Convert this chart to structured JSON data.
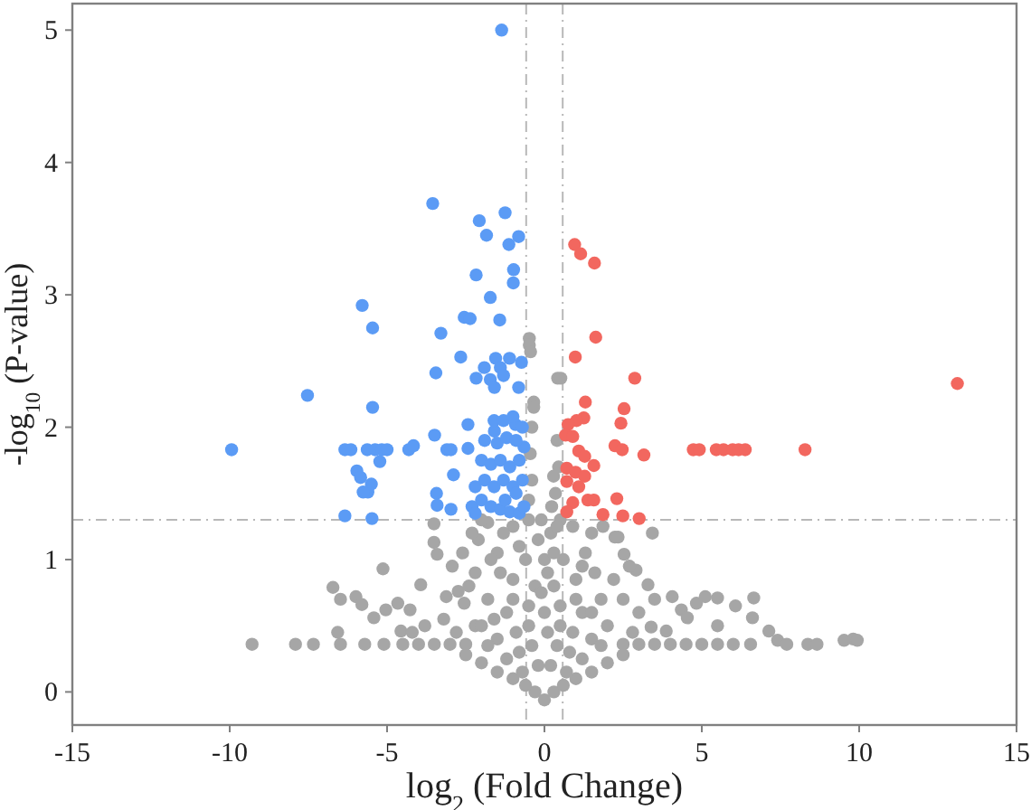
{
  "chart_data": {
    "type": "scatter",
    "xlabel": "log$_{2}$ (Fold Change)",
    "ylabel": "-log$_{10}$ (P-value)",
    "xlim": [
      -15,
      15
    ],
    "ylim": [
      -0.25,
      5.2
    ],
    "xticks": [
      -15,
      -10,
      -5,
      0,
      5,
      10,
      15
    ],
    "yticks": [
      0,
      1,
      2,
      3,
      4,
      5
    ],
    "marker": "circle",
    "ref_lines": [
      {
        "axis": "x",
        "value": -0.58,
        "color": "#b8b8b8",
        "line_style": "dashed"
      },
      {
        "axis": "x",
        "value": 0.58,
        "color": "#b8b8b8",
        "line_style": "dashed"
      },
      {
        "axis": "y",
        "value": 1.3,
        "color": "#b8b8b8",
        "line_style": "dashed"
      }
    ],
    "series": [
      {
        "color": "#a6a6a6",
        "x": [
          -9.29,
          -7.91,
          -7.34,
          -6.48,
          -5.71,
          -5.1,
          -4.5,
          -4.0,
          -3.5,
          -3.0,
          -2.5,
          -6.72,
          -5.13,
          -6.48,
          -5.99,
          -5.8,
          -5.42,
          -5.04,
          -4.66,
          -4.27,
          -4.56,
          -6.57,
          -3.93,
          -3.51,
          -3.41,
          -2.93,
          -3.12,
          -2.74,
          -2.55,
          -3.51,
          -3.8,
          -3.2,
          -2.2,
          6.55,
          6.0,
          5.5,
          5.0,
          4.5,
          4.0,
          3.5,
          3.0,
          2.5,
          7.13,
          7.41,
          7.7,
          8.37,
          8.66,
          9.52,
          9.81,
          9.94,
          6.65,
          6.61,
          6.07,
          5.5,
          5.11,
          4.83,
          4.35,
          4.06,
          4.54,
          3.87,
          3.39,
          3.29,
          2.91,
          2.53,
          2.24,
          1.86,
          3.43,
          2.34,
          3.0,
          2.5,
          -0.48,
          -0.48,
          -0.44,
          0.42,
          0.52,
          -0.34,
          -0.34,
          0.29,
          0.23,
          -0.4,
          -0.45,
          -0.4,
          0.4,
          0.45,
          -0.5,
          0.35,
          0,
          -0.3,
          0.3,
          -0.6,
          0.6,
          -1.0,
          1.0,
          -1.5,
          1.5,
          -2.0,
          2.0,
          -2.5,
          2.5,
          -0.2,
          0.2,
          -0.8,
          0.8,
          -1.5,
          1.5,
          -2.0,
          2.0,
          -0.5,
          0.5,
          -1.2,
          1.2,
          -1.8,
          1.8,
          -0.3,
          0.3,
          -1.0,
          1.0,
          -2.2,
          1.6,
          -0.6,
          0.6,
          -1.5,
          1.3,
          -2.1,
          -0.2,
          0.2,
          -1.0,
          0.9,
          -1.8,
          -0.5,
          0.5,
          -2.3,
          0,
          0,
          -0.9,
          0.9,
          -1.8,
          -1.2,
          -0.7,
          0.7,
          1.2,
          1.8,
          -2.8,
          2.8,
          -1.6,
          -1.0,
          -0.5,
          0.5,
          1.0,
          1.5,
          -2.4,
          -1.4,
          -0.8,
          0.3,
          1.2,
          2.2,
          -1.3,
          -0.1,
          0.4,
          1.5,
          -2.6,
          -0.4,
          0.4,
          0.1,
          -0.1,
          0.1,
          -1.7,
          2.7,
          3.5,
          -4.2,
          5.5,
          -2.0
        ],
        "values": [
          0.36,
          0.36,
          0.36,
          0.36,
          0.36,
          0.36,
          0.36,
          0.36,
          0.36,
          0.36,
          0.36,
          0.79,
          0.93,
          0.7,
          0.72,
          0.66,
          0.56,
          0.62,
          0.67,
          0.62,
          0.46,
          0.45,
          0.81,
          1.13,
          1.04,
          0.95,
          0.72,
          0.76,
          0.67,
          1.27,
          0.5,
          0.55,
          0.5,
          0.36,
          0.36,
          0.36,
          0.36,
          0.36,
          0.36,
          0.36,
          0.36,
          0.36,
          0.46,
          0.39,
          0.36,
          0.36,
          0.36,
          0.39,
          0.4,
          0.39,
          0.71,
          0.56,
          0.65,
          0.71,
          0.72,
          0.67,
          0.62,
          0.72,
          0.56,
          0.46,
          0.49,
          0.81,
          0.92,
          1.04,
          1.17,
          1.25,
          1.2,
          1.17,
          0.6,
          0.7,
          2.67,
          2.62,
          2.57,
          2.37,
          2.37,
          2.19,
          2.15,
          1.63,
          1.4,
          2.0,
          1.8,
          1.6,
          1.9,
          1.7,
          1.45,
          1.5,
          -0.06,
          0,
          0,
          0.05,
          0.05,
          0.1,
          0.1,
          0.15,
          0.15,
          0.22,
          0.22,
          0.28,
          0.28,
          0.2,
          0.2,
          0.3,
          0.3,
          0.4,
          0.4,
          0.5,
          0.5,
          0.5,
          0.5,
          0.6,
          0.6,
          0.7,
          0.7,
          0.8,
          0.8,
          0.85,
          0.85,
          0.9,
          0.9,
          1.0,
          1.0,
          1.05,
          1.05,
          1.15,
          1.15,
          1.2,
          1.25,
          1.25,
          1.28,
          1.3,
          1.3,
          1.2,
          0.6,
          1.0,
          0.45,
          0.45,
          0.35,
          0.25,
          0.15,
          0.15,
          0.25,
          0.35,
          0.45,
          0.45,
          0.55,
          0.7,
          0.65,
          0.65,
          0.7,
          0.6,
          0.8,
          0.9,
          1.1,
          1.05,
          0.95,
          0.85,
          1.2,
          1.3,
          1.25,
          1.2,
          1.05,
          0.35,
          0.35,
          0.45,
          0.75,
          0.9,
          1.0,
          0.95,
          0.7,
          0.45,
          0.5,
          1.3
        ]
      },
      {
        "color": "#5b9bf5",
        "x": [
          -1.36,
          -3.55,
          -1.25,
          -2.07,
          -1.84,
          -0.82,
          -1.13,
          -2.17,
          -0.98,
          -0.99,
          -1.72,
          -5.79,
          -2.55,
          -2.36,
          -1.42,
          -5.46,
          -3.29,
          -2.66,
          -1.55,
          -1.11,
          -0.73,
          -3.45,
          -1.91,
          -1.4,
          -2.17,
          -1.72,
          -1.3,
          -1.59,
          -0.82,
          -7.53,
          -5.46,
          -2.43,
          -3.49,
          -1.59,
          -0.92,
          -9.94,
          -6.34,
          -6.15,
          -5.63,
          -5.38,
          -5.17,
          -5.0,
          -4.31,
          -4.16,
          -3.1,
          -2.97,
          -2.43,
          -5.96,
          -5.84,
          -5.23,
          -5.5,
          -5.61,
          -5.76,
          -2.89,
          -3.43,
          -3.41,
          -2.97,
          -6.34,
          -5.48,
          -2.3,
          -2.0,
          -1.7,
          -1.4,
          -1.1,
          -0.8,
          -0.65,
          -2.2,
          -1.9,
          -1.6,
          -1.3,
          -1.0,
          -0.7,
          -2.0,
          -1.7,
          -1.4,
          -1.1,
          -0.8,
          -0.65,
          -1.9,
          -1.5,
          -1.2,
          -0.9,
          -1.6,
          -1.3,
          -1.0,
          -0.7,
          -2.2,
          -1.25,
          -0.9
        ],
        "values": [
          5.0,
          3.69,
          3.62,
          3.56,
          3.45,
          3.44,
          3.38,
          3.15,
          3.19,
          3.09,
          2.98,
          2.92,
          2.83,
          2.82,
          2.81,
          2.75,
          2.71,
          2.53,
          2.52,
          2.52,
          2.49,
          2.41,
          2.45,
          2.45,
          2.37,
          2.36,
          2.39,
          2.3,
          2.3,
          2.24,
          2.15,
          2.02,
          1.94,
          1.97,
          2.02,
          1.83,
          1.83,
          1.83,
          1.83,
          1.83,
          1.83,
          1.83,
          1.83,
          1.86,
          1.83,
          1.83,
          1.84,
          1.67,
          1.62,
          1.74,
          1.57,
          1.51,
          1.51,
          1.64,
          1.5,
          1.41,
          1.38,
          1.33,
          1.31,
          1.4,
          1.45,
          1.4,
          1.38,
          1.36,
          1.35,
          1.4,
          1.55,
          1.6,
          1.55,
          1.6,
          1.55,
          1.6,
          1.75,
          1.72,
          1.75,
          1.7,
          1.75,
          1.85,
          1.9,
          1.88,
          1.92,
          1.9,
          2.05,
          2.05,
          2.08,
          2.0,
          1.35,
          1.45,
          1.5
        ]
      },
      {
        "color": "#f2675f",
        "x": [
          0.96,
          1.15,
          1.59,
          1.63,
          0.98,
          2.87,
          13.12,
          1.3,
          2.53,
          2.43,
          1.25,
          1.02,
          0.75,
          2.24,
          2.47,
          3.16,
          4.73,
          4.92,
          5.46,
          5.69,
          5.98,
          6.17,
          6.38,
          8.28,
          0.67,
          0.9,
          1.09,
          1.28,
          1.57,
          0.71,
          0.99,
          1.28,
          0.71,
          1.09,
          2.3,
          0.9,
          1.38,
          1.57,
          0.71,
          1.86,
          2.49,
          3.01
        ],
        "values": [
          3.38,
          3.31,
          3.24,
          2.68,
          2.53,
          2.37,
          2.33,
          2.19,
          2.14,
          2.03,
          2.07,
          2.05,
          2.02,
          1.86,
          1.83,
          1.79,
          1.83,
          1.83,
          1.83,
          1.83,
          1.83,
          1.83,
          1.83,
          1.83,
          1.94,
          1.93,
          1.82,
          1.78,
          1.71,
          1.69,
          1.66,
          1.63,
          1.59,
          1.55,
          1.46,
          1.43,
          1.45,
          1.45,
          1.36,
          1.34,
          1.33,
          1.31
        ]
      }
    ]
  }
}
